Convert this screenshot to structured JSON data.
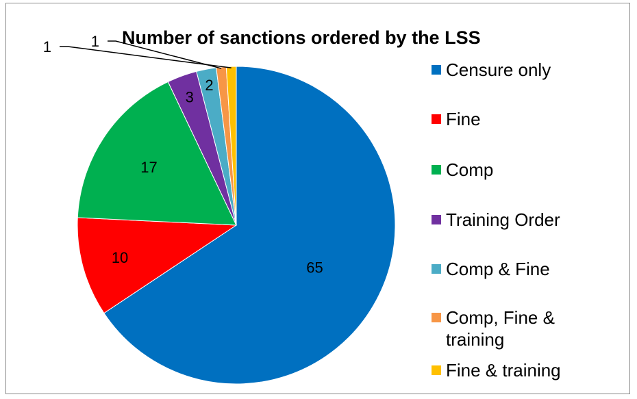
{
  "chart_data": {
    "type": "pie",
    "title": "Number of sanctions ordered by the LSS",
    "legend_position": "right",
    "slices": [
      {
        "name": "Censure only",
        "value": 65,
        "label": "65",
        "color": "#0070C0"
      },
      {
        "name": "Fine",
        "value": 10,
        "label": "10",
        "color": "#FF0000"
      },
      {
        "name": "Comp",
        "value": 17,
        "label": "17",
        "color": "#00B050"
      },
      {
        "name": "Training Order",
        "value": 3,
        "label": "3",
        "color": "#7030A0"
      },
      {
        "name": "Comp & Fine",
        "value": 2,
        "label": "2",
        "color": "#4BACC6"
      },
      {
        "name": "Comp, Fine & training",
        "value": 1,
        "label": "1",
        "color": "#F79646"
      },
      {
        "name": "Fine & training",
        "value": 1,
        "label": "1",
        "color": "#FFC000"
      }
    ]
  }
}
